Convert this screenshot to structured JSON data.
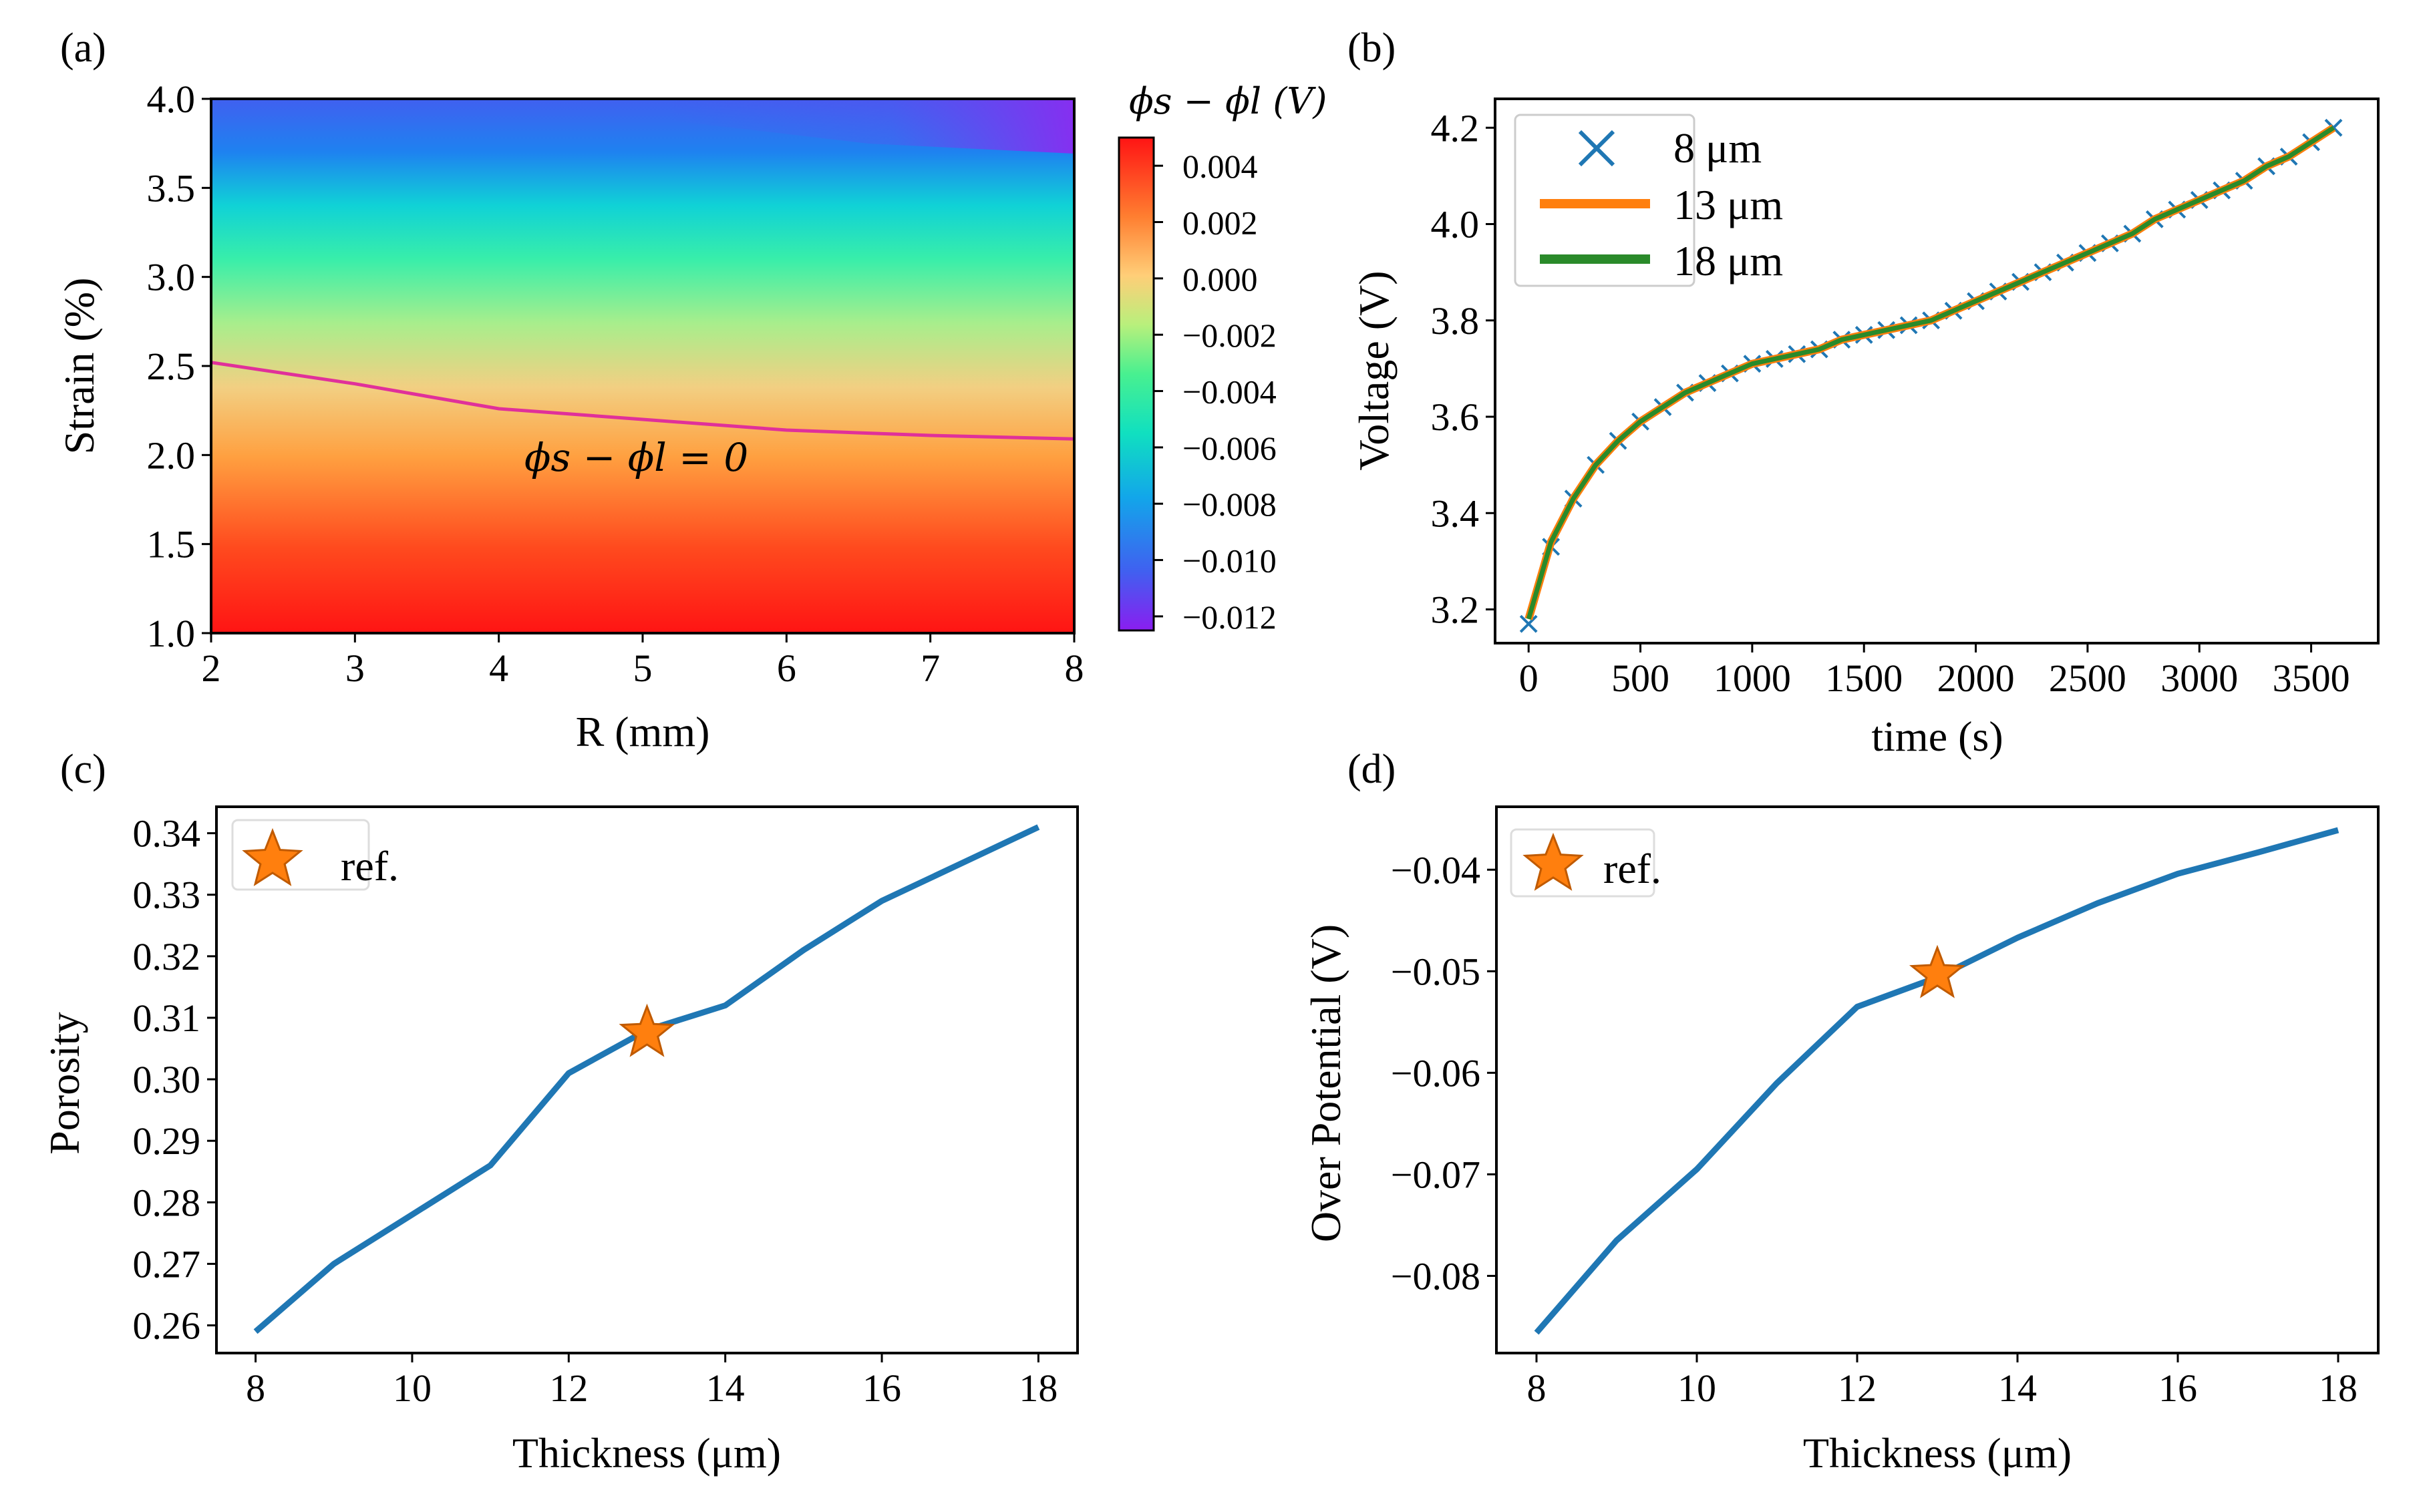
{
  "chart_data": [
    {
      "panel": "(a)",
      "type": "heatmap",
      "xlabel": "R (mm)",
      "ylabel": "Strain (%)",
      "xlim": [
        2,
        8
      ],
      "ylim": [
        1.0,
        4.0
      ],
      "xticks": [
        "2",
        "3",
        "4",
        "5",
        "6",
        "7",
        "8"
      ],
      "yticks": [
        "1.0",
        "1.5",
        "2.0",
        "2.5",
        "3.0",
        "3.5",
        "4.0"
      ],
      "colorbar": {
        "label": "ϕs − ϕl (V)",
        "range": [
          -0.0125,
          0.005
        ],
        "ticks": [
          "0.004",
          "0.002",
          "0.000",
          "−0.002",
          "−0.004",
          "−0.006",
          "−0.008",
          "−0.010",
          "−0.012"
        ],
        "tick_values": [
          0.004,
          0.002,
          0.0,
          -0.002,
          -0.004,
          -0.006,
          -0.008,
          -0.01,
          -0.012
        ]
      },
      "contour": {
        "label": "ϕs − ϕl = 0",
        "color": "#e0309a",
        "x": [
          2,
          3,
          4,
          5,
          6,
          7,
          8
        ],
        "y": [
          2.52,
          2.4,
          2.26,
          2.2,
          2.14,
          2.11,
          2.09
        ]
      }
    },
    {
      "panel": "(b)",
      "type": "line",
      "xlabel": "time (s)",
      "ylabel": "Voltage (V)",
      "xlim": [
        -150,
        3800
      ],
      "ylim": [
        3.13,
        4.26
      ],
      "xticks": [
        "0",
        "500",
        "1000",
        "1500",
        "2000",
        "2500",
        "3000",
        "3500"
      ],
      "yticks": [
        "3.2",
        "3.4",
        "3.6",
        "3.8",
        "4.0",
        "4.2"
      ],
      "x": [
        0,
        100,
        200,
        300,
        400,
        500,
        600,
        700,
        800,
        900,
        1000,
        1100,
        1200,
        1300,
        1400,
        1500,
        1600,
        1700,
        1800,
        1900,
        2000,
        2100,
        2200,
        2300,
        2400,
        2500,
        2600,
        2700,
        2800,
        2900,
        3000,
        3100,
        3200,
        3300,
        3400,
        3500,
        3600
      ],
      "series": [
        {
          "name": "8 μm",
          "style": "x-marker",
          "color": "#1f77b4",
          "values": [
            3.17,
            3.33,
            3.43,
            3.5,
            3.55,
            3.59,
            3.62,
            3.65,
            3.67,
            3.69,
            3.71,
            3.72,
            3.73,
            3.74,
            3.76,
            3.77,
            3.78,
            3.79,
            3.8,
            3.82,
            3.84,
            3.86,
            3.88,
            3.9,
            3.92,
            3.94,
            3.96,
            3.98,
            4.01,
            4.03,
            4.05,
            4.07,
            4.09,
            4.12,
            4.14,
            4.17,
            4.2
          ]
        },
        {
          "name": "13 μm",
          "style": "line",
          "color": "#ff7f0e",
          "values": [
            3.18,
            3.34,
            3.43,
            3.5,
            3.55,
            3.59,
            3.62,
            3.65,
            3.67,
            3.69,
            3.71,
            3.72,
            3.73,
            3.74,
            3.76,
            3.77,
            3.78,
            3.79,
            3.8,
            3.82,
            3.84,
            3.86,
            3.88,
            3.9,
            3.92,
            3.94,
            3.96,
            3.98,
            4.01,
            4.03,
            4.05,
            4.07,
            4.09,
            4.12,
            4.14,
            4.17,
            4.2
          ]
        },
        {
          "name": "18 μm",
          "style": "line",
          "color": "#2a8a2a",
          "values": [
            3.18,
            3.34,
            3.43,
            3.5,
            3.55,
            3.59,
            3.62,
            3.65,
            3.67,
            3.69,
            3.71,
            3.72,
            3.73,
            3.74,
            3.76,
            3.77,
            3.78,
            3.79,
            3.8,
            3.82,
            3.84,
            3.86,
            3.88,
            3.9,
            3.92,
            3.94,
            3.96,
            3.98,
            4.01,
            4.03,
            4.05,
            4.07,
            4.09,
            4.12,
            4.14,
            4.17,
            4.2
          ]
        }
      ],
      "legend": "top-left"
    },
    {
      "panel": "(c)",
      "type": "line",
      "xlabel": "Thickness (μm)",
      "ylabel": "Porosity",
      "xlim": [
        7.5,
        18.5
      ],
      "ylim": [
        0.2555,
        0.3443
      ],
      "xticks": [
        "8",
        "10",
        "12",
        "14",
        "16",
        "18"
      ],
      "yticks": [
        "0.26",
        "0.27",
        "0.28",
        "0.29",
        "0.30",
        "0.31",
        "0.32",
        "0.33",
        "0.34"
      ],
      "x": [
        8,
        9,
        10,
        11,
        12,
        13,
        14,
        15,
        16,
        17,
        18
      ],
      "values": [
        0.259,
        0.27,
        0.278,
        0.286,
        0.301,
        0.308,
        0.312,
        0.321,
        0.329,
        0.335,
        0.341
      ],
      "color": "#1f77b4",
      "reference": {
        "label": "ref.",
        "x": 13,
        "y": 0.3075,
        "marker": "star",
        "color": "#ff7f0e"
      },
      "legend": "top-left"
    },
    {
      "panel": "(d)",
      "type": "line",
      "xlabel": "Thickness (μm)",
      "ylabel": "Over Potential (V)",
      "xlim": [
        7.5,
        18.5
      ],
      "ylim": [
        -0.0876,
        -0.0338
      ],
      "xticks": [
        "8",
        "10",
        "12",
        "14",
        "16",
        "18"
      ],
      "yticks": [
        "−0.04",
        "−0.05",
        "−0.06",
        "−0.07",
        "−0.08"
      ],
      "ytick_values": [
        -0.04,
        -0.05,
        -0.06,
        -0.07,
        -0.08
      ],
      "x": [
        8,
        9,
        10,
        11,
        12,
        13,
        14,
        15,
        16,
        17,
        18
      ],
      "values": [
        -0.0856,
        -0.0765,
        -0.0695,
        -0.061,
        -0.0535,
        -0.0506,
        -0.0467,
        -0.0433,
        -0.0404,
        -0.0383,
        -0.0361
      ],
      "color": "#1f77b4",
      "reference": {
        "label": "ref.",
        "x": 13,
        "y": -0.0503,
        "marker": "star",
        "color": "#ff7f0e"
      },
      "legend": "top-left"
    }
  ]
}
